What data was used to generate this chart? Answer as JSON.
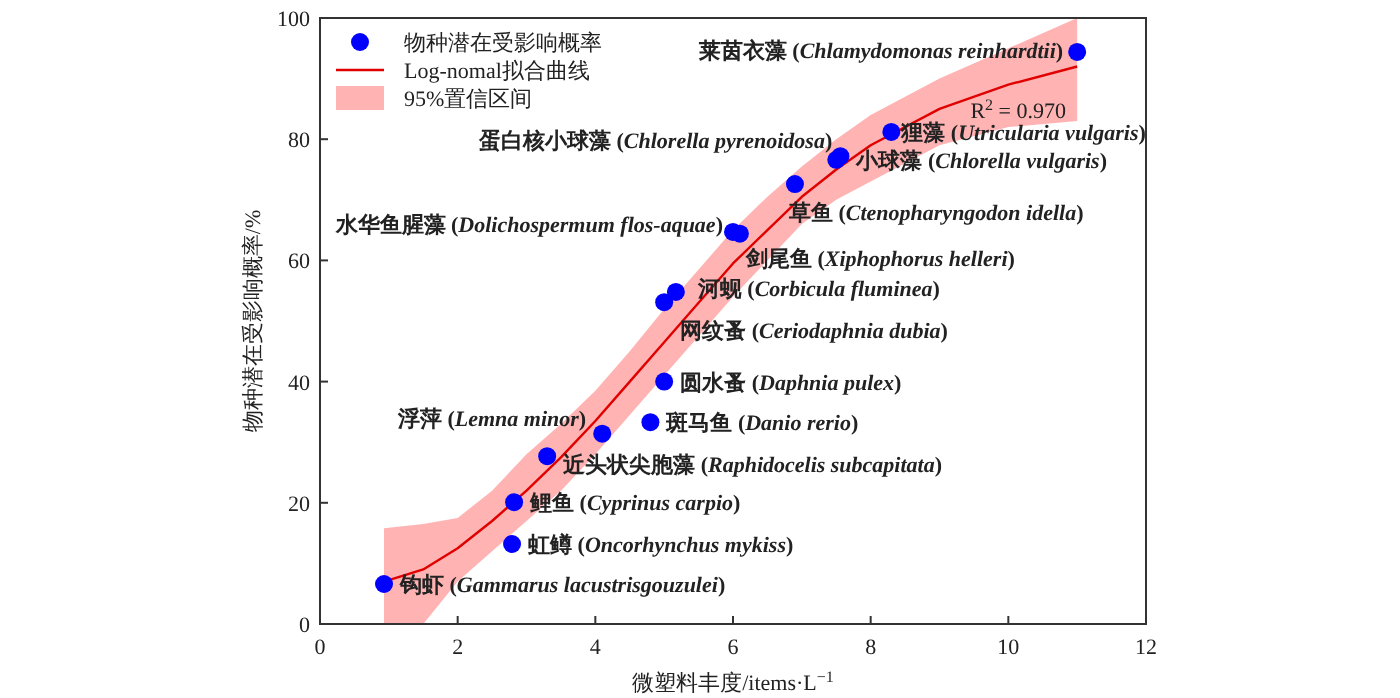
{
  "chart_data": {
    "type": "scatter",
    "xlabel": "微塑料丰度/items·L$^{−1}$",
    "ylabel": "物种潜在受影响概率/%",
    "xlim": [
      0,
      12
    ],
    "ylim": [
      0,
      100
    ],
    "xticks": [
      0,
      2,
      4,
      6,
      8,
      10,
      12
    ],
    "yticks": [
      0,
      20,
      40,
      60,
      80,
      100
    ],
    "legend": "top left",
    "series": [
      {
        "type": "line",
        "name": "Log-nomal拟合曲线",
        "color": "#e00000",
        "x": [
          0.93,
          1.5,
          2,
          2.5,
          3,
          3.5,
          4,
          4.5,
          5,
          5.5,
          6,
          6.5,
          7,
          7.5,
          8,
          9,
          10,
          11
        ],
        "values": [
          7,
          9,
          12.5,
          17,
          22,
          27.5,
          33.5,
          40,
          46.5,
          53,
          59.5,
          65,
          70.5,
          75,
          79,
          85,
          89,
          92
        ],
        "upper": [
          15.8,
          16.5,
          17.5,
          22,
          28,
          33,
          38.5,
          45,
          52,
          58.5,
          65,
          70.5,
          75.5,
          80,
          84,
          90,
          95,
          100
        ],
        "lower": [
          0,
          0,
          7,
          12,
          17,
          22,
          28,
          34.5,
          41,
          47.5,
          54,
          60,
          66,
          70,
          73,
          79,
          82,
          83
        ]
      },
      {
        "type": "scatter",
        "name": "物种潜在受影响概率",
        "color": "#0000ff",
        "marker": "circle",
        "x": [
          0.93,
          2.79,
          2.82,
          3.3,
          4.1,
          4.8,
          5.0,
          5.0,
          5.17,
          6.1,
          6.0,
          6.9,
          7.56,
          7.5,
          8.3,
          11.0
        ],
        "values": [
          6.6,
          13.2,
          20.1,
          27.7,
          31.4,
          33.3,
          40,
          53.1,
          54.8,
          64.4,
          64.7,
          72.6,
          77.2,
          76.6,
          81.2,
          94.4
        ]
      }
    ],
    "annotations": [
      {
        "text": "钩虾 (Gammarus lacustrisgouzulei)",
        "x": 0.93,
        "y": 6.6
      },
      {
        "text": "虹鳟 (Oncorhynchus mykiss)",
        "x": 2.79,
        "y": 13.2
      },
      {
        "text": "鲤鱼 (Cyprinus carpio)",
        "x": 2.82,
        "y": 20.1
      },
      {
        "text": "近头状尖胞藻 (Raphidocelis subcapitata)",
        "x": 3.3,
        "y": 27.7
      },
      {
        "text": "浮萍 (Lemna minor)",
        "x": 4.1,
        "y": 31.4
      },
      {
        "text": "斑马鱼 (Danio rerio)",
        "x": 4.8,
        "y": 33.3
      },
      {
        "text": "圆水蚤 (Daphnia pulex)",
        "x": 5.0,
        "y": 40
      },
      {
        "text": "网纹蚤 (Ceriodaphnia dubia)",
        "x": 5.0,
        "y": 53.1
      },
      {
        "text": "河蚬 (Corbicula fluminea)",
        "x": 5.17,
        "y": 54.8
      },
      {
        "text": "剑尾鱼 (Xiphophorus helleri)",
        "x": 6.1,
        "y": 64.4
      },
      {
        "text": "水华鱼腥藻 (Dolichospermum flos-aquae)",
        "x": 6.0,
        "y": 64.7
      },
      {
        "text": "草鱼 (Ctenopharyngodon idella)",
        "x": 6.9,
        "y": 72.6
      },
      {
        "text": "小球藻 (Chlorella vulgaris)",
        "x": 7.56,
        "y": 77.2
      },
      {
        "text": "蛋白核小球藻 (Chlorella pyrenoidosa)",
        "x": 7.5,
        "y": 76.6
      },
      {
        "text": "狸藻 (Utricularia vulgaris)",
        "x": 8.3,
        "y": 81.2
      },
      {
        "text": "莱茵衣藻 (Chlamydomonas reinhardtii)",
        "x": 11.0,
        "y": 94.4
      },
      "95%置信区间",
      "R$^{2}$ = 0.970"
    ]
  }
}
